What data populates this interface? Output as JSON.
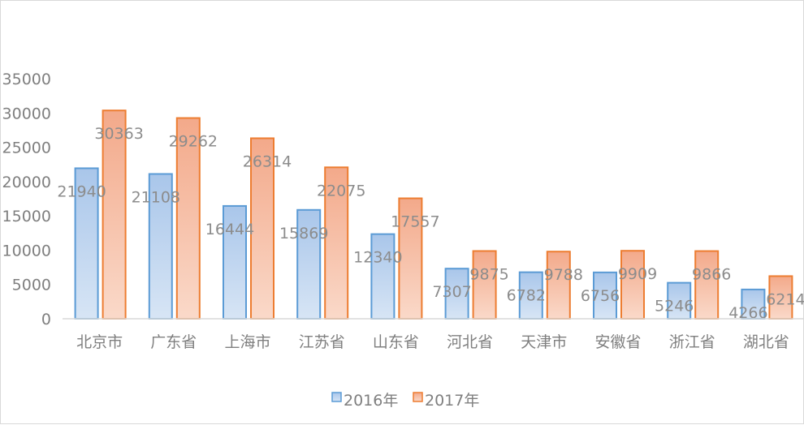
{
  "chart_data": {
    "type": "bar",
    "title": "",
    "xlabel": "",
    "ylabel": "",
    "categories": [
      "北京市",
      "广东省",
      "上海市",
      "江苏省",
      "山东省",
      "河北省",
      "天津市",
      "安徽省",
      "浙江省",
      "湖北省"
    ],
    "series": [
      {
        "name": "2016年",
        "values": [
          21940,
          21108,
          16444,
          15869,
          12340,
          7307,
          6782,
          6756,
          5246,
          4266
        ],
        "color": "#6a9fd6"
      },
      {
        "name": "2017年",
        "values": [
          30363,
          29262,
          26314,
          22075,
          17557,
          9875,
          9788,
          9909,
          9866,
          6214
        ],
        "color": "#ed7d31"
      }
    ],
    "ylim": [
      0,
      35000
    ],
    "yticks": [
      0,
      5000,
      10000,
      15000,
      20000,
      25000,
      30000,
      35000
    ],
    "grid": false,
    "legend": "bottom-center",
    "data_labels": true
  }
}
